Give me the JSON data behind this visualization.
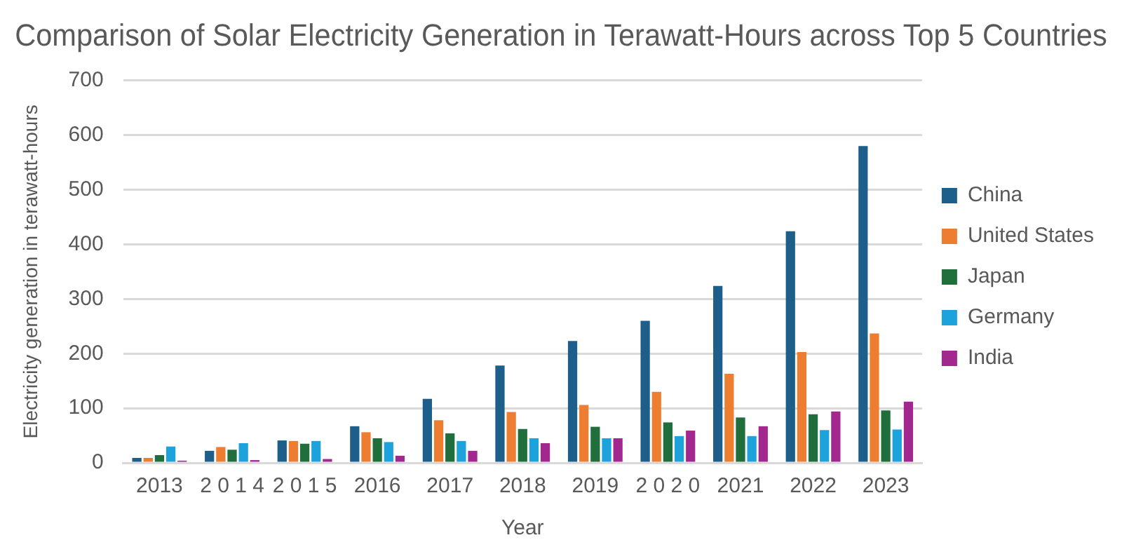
{
  "chart_data": {
    "type": "bar",
    "title": "Comparison of Solar Electricity Generation in Terawatt-Hours across Top 5 Countries",
    "xlabel": "Year",
    "ylabel": "Electricity generation in terawatt-hours",
    "categories": [
      "2013",
      "2 0 1 4",
      "2 0 1 5",
      "2016",
      "2017",
      "2018",
      "2019",
      "2 0 2 0",
      "2021",
      "2022",
      "2023"
    ],
    "series": [
      {
        "name": "China",
        "color": "#1d5f8a",
        "values": [
          9,
          22,
          41,
          67,
          117,
          178,
          223,
          260,
          324,
          424,
          580
        ]
      },
      {
        "name": "United States",
        "color": "#ed7d31",
        "values": [
          9,
          29,
          40,
          56,
          78,
          93,
          106,
          130,
          163,
          203,
          237
        ]
      },
      {
        "name": "Japan",
        "color": "#1f6e3b",
        "values": [
          14,
          24,
          35,
          45,
          54,
          62,
          66,
          74,
          83,
          89,
          96
        ]
      },
      {
        "name": "Germany",
        "color": "#1ea2dc",
        "values": [
          30,
          36,
          40,
          38,
          40,
          45,
          45,
          49,
          49,
          60,
          61
        ]
      },
      {
        "name": "India",
        "color": "#a2278f",
        "values": [
          4,
          5,
          7,
          13,
          22,
          36,
          45,
          59,
          67,
          94,
          112
        ]
      }
    ],
    "ylim": [
      0,
      700
    ],
    "yticks": [
      0,
      100,
      200,
      300,
      400,
      500,
      600,
      700
    ],
    "grid": "y",
    "legend": "right"
  }
}
